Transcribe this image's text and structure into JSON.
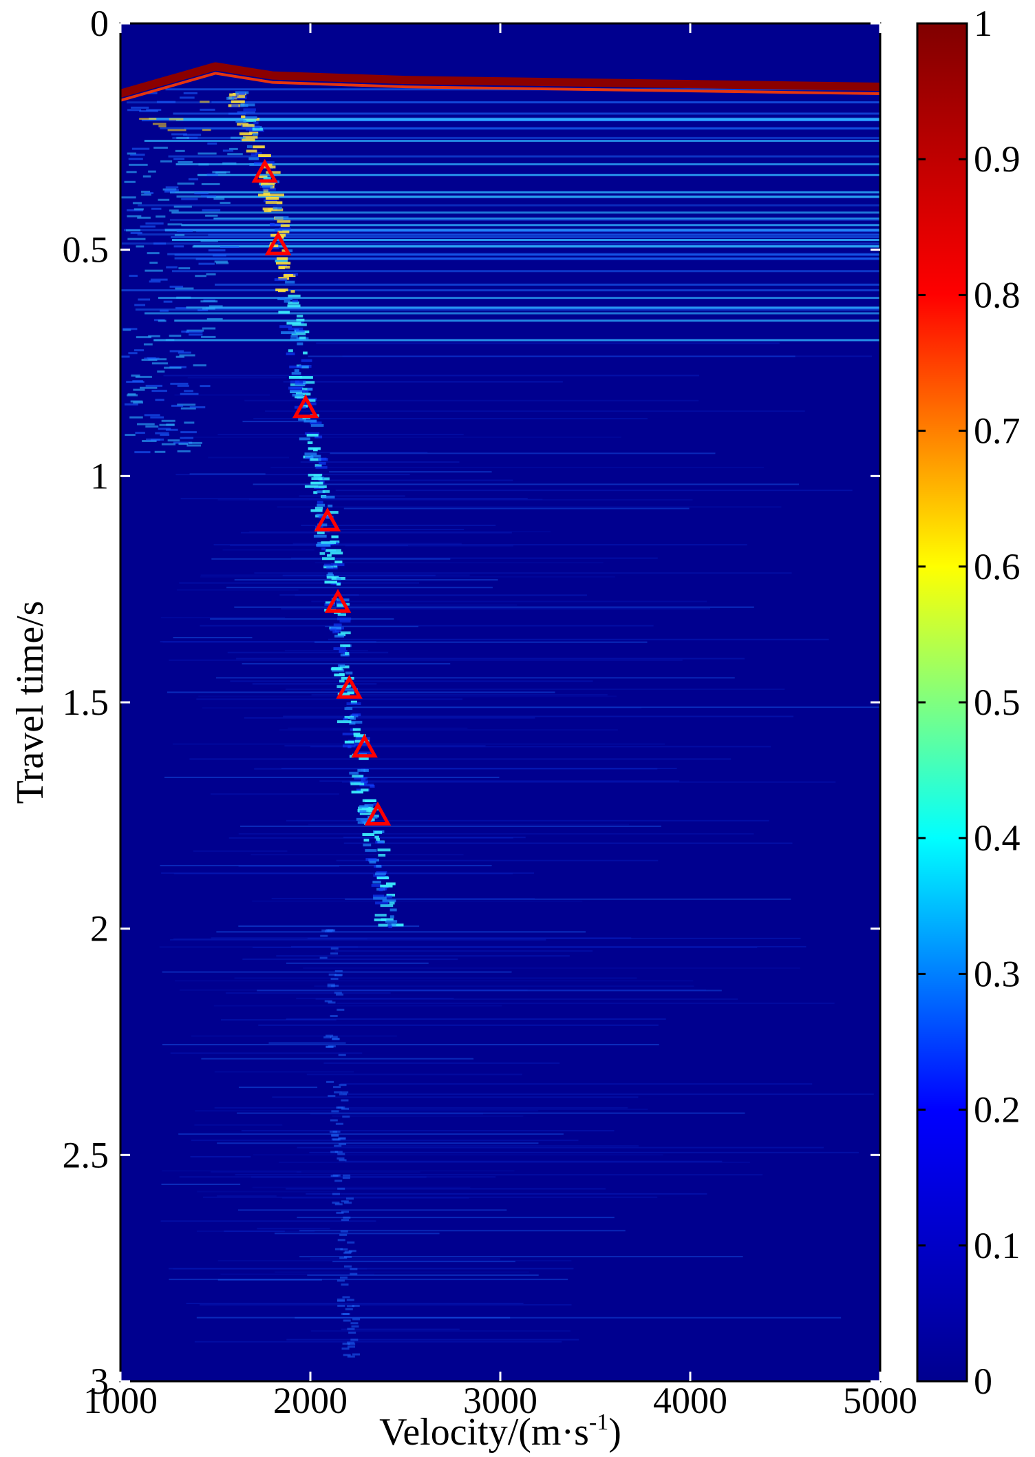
{
  "chart_data": {
    "type": "heatmap",
    "title": "",
    "xlabel": {
      "prefix": "Velocity/(m·s",
      "sup": "-1",
      "suffix": ")"
    },
    "ylabel": "Travel time/s",
    "xlim": [
      1000,
      5000
    ],
    "ylim": [
      0,
      3
    ],
    "y_inverted": true,
    "x_ticks": [
      1000,
      2000,
      3000,
      4000,
      5000
    ],
    "x_tick_labels": [
      "1000",
      "2000",
      "3000",
      "4000",
      "5000"
    ],
    "y_ticks": [
      0,
      0.5,
      1,
      1.5,
      2,
      2.5,
      3
    ],
    "y_tick_labels": [
      "0",
      "0.5",
      "1",
      "1.5",
      "2",
      "2.5",
      "3"
    ],
    "colorbar": {
      "range": [
        0,
        1
      ],
      "ticks": [
        0,
        0.1,
        0.2,
        0.3,
        0.4,
        0.5,
        0.6,
        0.7,
        0.8,
        0.9,
        1
      ],
      "tick_labels": [
        "0",
        "0.1",
        "0.2",
        "0.3",
        "0.4",
        "0.5",
        "0.6",
        "0.7",
        "0.8",
        "0.9",
        "1"
      ],
      "colormap": "jet",
      "colors": [
        "#00008f",
        "#0000ff",
        "#00ffff",
        "#ffff00",
        "#ff0000",
        "#800000"
      ]
    },
    "background_color": "#00008f",
    "picked_points": {
      "marker": "triangle",
      "color": "#ff0000",
      "x": [
        1760,
        1830,
        1975,
        2090,
        2145,
        2205,
        2285,
        2355
      ],
      "y": [
        0.33,
        0.49,
        0.85,
        1.1,
        1.28,
        1.47,
        1.6,
        1.75
      ]
    },
    "energy_trend": {
      "x": [
        1600,
        1700,
        1780,
        1850,
        1920,
        2000,
        2080,
        2140,
        2200,
        2270,
        2330,
        2380,
        2420
      ],
      "y": [
        0.15,
        0.25,
        0.35,
        0.5,
        0.7,
        0.9,
        1.1,
        1.3,
        1.5,
        1.65,
        1.8,
        1.9,
        2.0
      ]
    },
    "first_break_band": {
      "x": [
        1000,
        1500,
        1800,
        2500,
        5000
      ],
      "y": [
        0.155,
        0.095,
        0.115,
        0.125,
        0.14
      ]
    }
  }
}
